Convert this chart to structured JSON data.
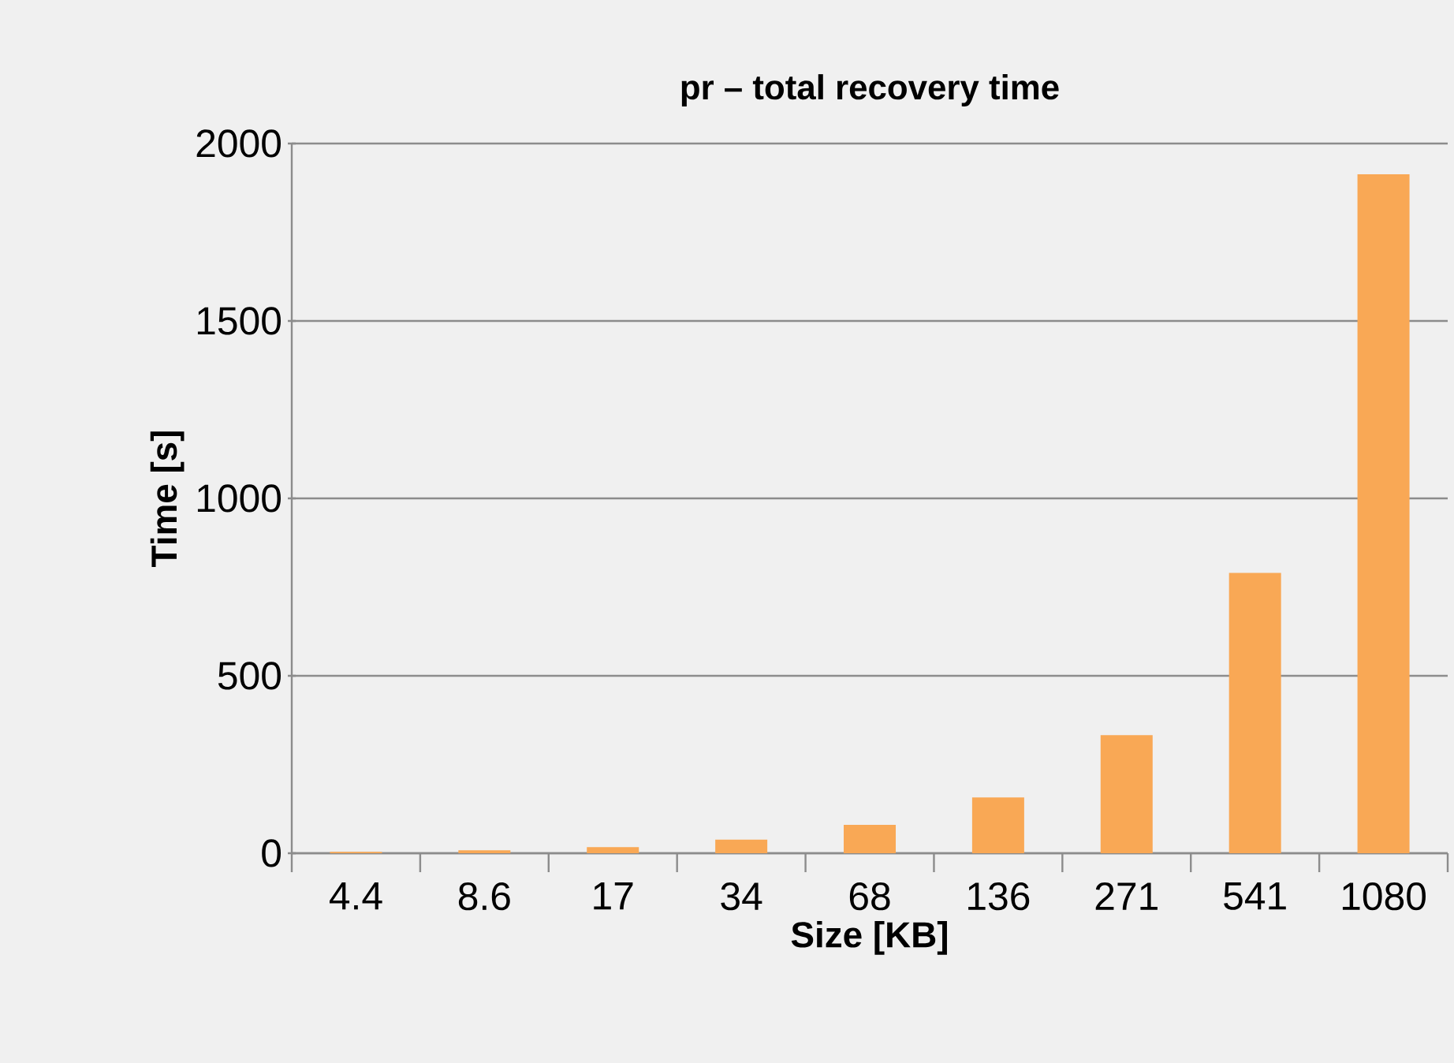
{
  "chart_data": {
    "type": "bar",
    "title": "pr – total recovery time",
    "xlabel": "Size [KB]",
    "ylabel": "Time [s]",
    "categories": [
      "4.4",
      "8.6",
      "17",
      "34",
      "68",
      "136",
      "271",
      "541",
      "1080"
    ],
    "values": [
      4,
      8.5,
      17,
      38,
      80,
      157,
      333,
      790,
      1913
    ],
    "color": "#f9a855",
    "ylim": [
      0,
      2000
    ],
    "yticks": [
      0,
      500,
      1000,
      1500,
      2000
    ],
    "grid": "y"
  }
}
